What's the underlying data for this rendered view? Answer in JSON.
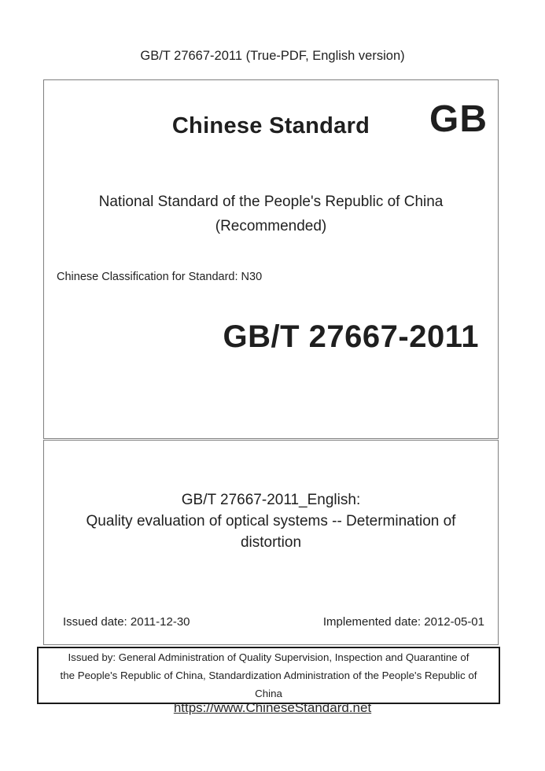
{
  "header": {
    "title": "GB/T 27667-2011 (True-PDF, English version)"
  },
  "cover_box": {
    "brand": "Chinese Standard",
    "logo": "GB",
    "national_standard": "National Standard of the People's Republic of China",
    "recommended": "(Recommended)",
    "classification": "Chinese Classification for Standard: N30",
    "standard_number": "GB/T 27667-2011"
  },
  "title_box": {
    "english_heading": "GB/T 27667-2011_English:",
    "standard_title": "Quality evaluation of optical systems -- Determination of\ndistortion",
    "issued_date": "Issued date: 2011-12-30",
    "implemented_date": "Implemented date: 2012-05-01"
  },
  "issuer_box": {
    "text": "Issued by: General Administration of Quality Supervision, Inspection and Quarantine of\nthe People's Republic of China, Standardization Administration of the People's Republic of\nChina"
  },
  "footer": {
    "link": "https://www.ChineseStandard.net"
  },
  "colors": {
    "text": "#1f1f1f",
    "cover_box_border": "#7f7f7f",
    "issuer_box_border": "#1a1a1a",
    "link": "#2b2b2b",
    "background": "#ffffff"
  }
}
